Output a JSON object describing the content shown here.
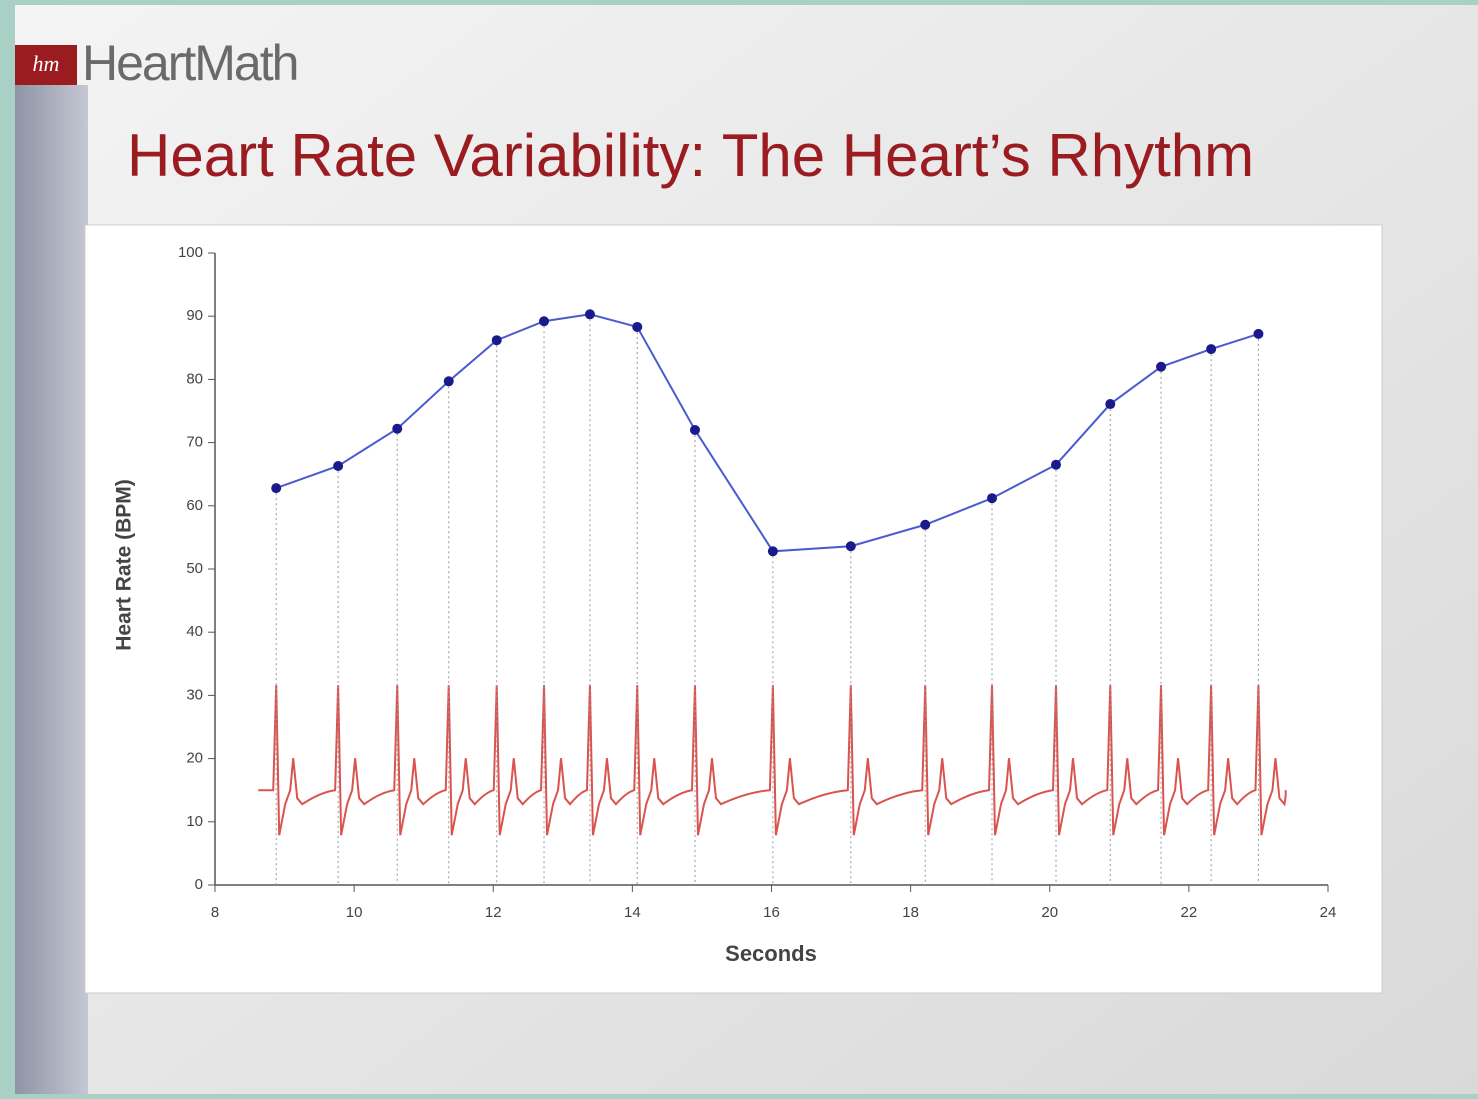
{
  "logo": {
    "mark": "hm",
    "name": "HeartMath"
  },
  "chart_data": {
    "type": "line",
    "title": "Heart Rate Variability: The Heart’s Rhythm",
    "xlabel": "Seconds",
    "ylabel": "Heart Rate (BPM)",
    "x": [
      8.88,
      9.77,
      10.62,
      11.36,
      12.05,
      12.73,
      13.39,
      14.07,
      14.9,
      16.02,
      17.14,
      18.21,
      19.17,
      20.09,
      20.87,
      21.6,
      22.32,
      23.0
    ],
    "series": [
      {
        "name": "Heart Rate",
        "color": "#4a5bd0",
        "values": [
          62.8,
          66.3,
          72.2,
          79.7,
          86.2,
          89.2,
          90.3,
          88.3,
          72.0,
          52.8,
          53.6,
          57.0,
          61.2,
          66.5,
          76.1,
          82.0,
          84.8,
          87.2
        ]
      }
    ],
    "ecg_color": "#d9534f",
    "xlim": [
      8,
      24
    ],
    "xticks": [
      8,
      10,
      12,
      14,
      16,
      18,
      20,
      22,
      24
    ],
    "ylim": [
      0,
      100
    ],
    "yticks": [
      0,
      10,
      20,
      30,
      40,
      50,
      60,
      70,
      80,
      90,
      100
    ]
  }
}
